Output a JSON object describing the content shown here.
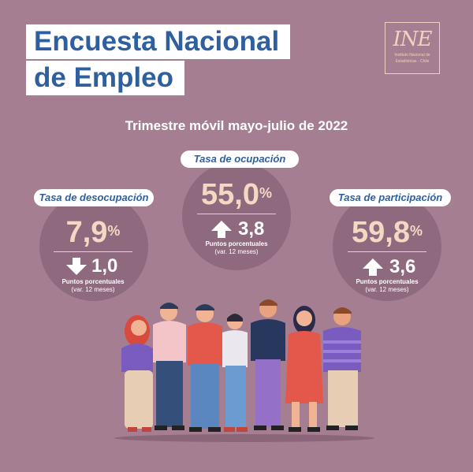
{
  "header": {
    "title_line1": "Encuesta Nacional",
    "title_line2": "de Empleo"
  },
  "logo": {
    "mark": "INE",
    "line1": "Instituto Nacional de",
    "line2": "Estadísticas - Chile"
  },
  "subtitle": "Trimestre móvil mayo-julio de 2022",
  "stats": {
    "desocupacion": {
      "label": "Tasa de desocupación",
      "value": "7,9",
      "unit": "%",
      "direction": "down",
      "change": "1,0",
      "change_label": "Puntos porcentuales",
      "change_note": "(var. 12 meses)"
    },
    "ocupacion": {
      "label": "Tasa de ocupación",
      "value": "55,0",
      "unit": "%",
      "direction": "up",
      "change": "3,8",
      "change_label": "Puntos porcentuales",
      "change_note": "(var. 12 meses)"
    },
    "participacion": {
      "label": "Tasa de participación",
      "value": "59,8",
      "unit": "%",
      "direction": "up",
      "change": "3,6",
      "change_label": "Puntos porcentuales",
      "change_note": "(var. 12 meses)"
    }
  },
  "colors": {
    "background": "#a57e92",
    "circle": "#8f6a7e",
    "title_text": "#2f5f9e",
    "value_text": "#f3d8c3"
  },
  "illustration": "group-of-people"
}
